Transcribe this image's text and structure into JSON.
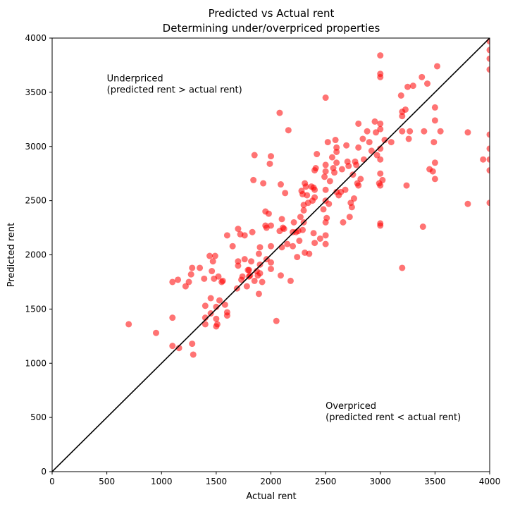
{
  "chart_data": {
    "type": "scatter",
    "title": "Predicted vs Actual rent",
    "subtitle": "Determining under/overpriced properties",
    "xlabel": "Actual rent",
    "ylabel": "Predicted rent",
    "xlim": [
      0,
      4000
    ],
    "ylim": [
      0,
      4000
    ],
    "xticks": [
      "0",
      "500",
      "1000",
      "1500",
      "2000",
      "2500",
      "3000",
      "3500",
      "4000"
    ],
    "yticks": [
      "0",
      "500",
      "1000",
      "1500",
      "2000",
      "2500",
      "3000",
      "3500",
      "4000"
    ],
    "grid": false,
    "annotations": [
      {
        "lines": [
          "Underpriced",
          "(predicted rent > actual rent)"
        ],
        "x": 500,
        "y": 3600
      },
      {
        "lines": [
          "Overpriced",
          "(predicted rent < actual rent)"
        ],
        "x": 2500,
        "y": 580
      }
    ],
    "reference_line": {
      "from": [
        0,
        0
      ],
      "to": [
        4000,
        4000
      ],
      "color": "#000000"
    },
    "point_color": "#ff0000",
    "point_opacity": 0.55,
    "points": [
      [
        700,
        1360
      ],
      [
        950,
        1280
      ],
      [
        1100,
        1750
      ],
      [
        1100,
        1420
      ],
      [
        1100,
        1160
      ],
      [
        1150,
        1770
      ],
      [
        1160,
        1140
      ],
      [
        1220,
        1710
      ],
      [
        1250,
        1750
      ],
      [
        1270,
        1820
      ],
      [
        1280,
        1880
      ],
      [
        1280,
        1180
      ],
      [
        1290,
        1080
      ],
      [
        1350,
        1880
      ],
      [
        1390,
        1780
      ],
      [
        1400,
        1530
      ],
      [
        1400,
        1420
      ],
      [
        1400,
        1360
      ],
      [
        1440,
        1990
      ],
      [
        1450,
        1600
      ],
      [
        1450,
        1460
      ],
      [
        1460,
        1850
      ],
      [
        1470,
        1940
      ],
      [
        1480,
        1780
      ],
      [
        1490,
        1990
      ],
      [
        1500,
        1520
      ],
      [
        1500,
        1410
      ],
      [
        1500,
        1340
      ],
      [
        1510,
        1360
      ],
      [
        1520,
        1800
      ],
      [
        1530,
        1580
      ],
      [
        1550,
        1750
      ],
      [
        1560,
        1760
      ],
      [
        1580,
        1540
      ],
      [
        1600,
        1470
      ],
      [
        1600,
        1440
      ],
      [
        1600,
        2180
      ],
      [
        1650,
        2080
      ],
      [
        1690,
        1690
      ],
      [
        1700,
        1900
      ],
      [
        1700,
        1940
      ],
      [
        1700,
        2240
      ],
      [
        1720,
        2190
      ],
      [
        1730,
        1770
      ],
      [
        1740,
        1800
      ],
      [
        1760,
        1960
      ],
      [
        1760,
        2180
      ],
      [
        1780,
        1710
      ],
      [
        1790,
        1860
      ],
      [
        1800,
        1860
      ],
      [
        1800,
        1800
      ],
      [
        1810,
        1810
      ],
      [
        1820,
        1940
      ],
      [
        1830,
        2210
      ],
      [
        1840,
        2690
      ],
      [
        1850,
        2920
      ],
      [
        1850,
        1760
      ],
      [
        1870,
        1850
      ],
      [
        1880,
        1810
      ],
      [
        1890,
        2010
      ],
      [
        1890,
        1640
      ],
      [
        1900,
        2070
      ],
      [
        1900,
        1830
      ],
      [
        1900,
        1910
      ],
      [
        1920,
        1750
      ],
      [
        1930,
        2660
      ],
      [
        1950,
        2400
      ],
      [
        1950,
        2270
      ],
      [
        1960,
        2250
      ],
      [
        1960,
        1960
      ],
      [
        1980,
        2380
      ],
      [
        1990,
        2840
      ],
      [
        2000,
        2910
      ],
      [
        2000,
        2270
      ],
      [
        2000,
        2080
      ],
      [
        2000,
        1930
      ],
      [
        2000,
        1870
      ],
      [
        2050,
        1390
      ],
      [
        2080,
        3310
      ],
      [
        2080,
        2220
      ],
      [
        2090,
        1810
      ],
      [
        2090,
        2650
      ],
      [
        2100,
        2070
      ],
      [
        2100,
        2330
      ],
      [
        2110,
        2250
      ],
      [
        2120,
        2240
      ],
      [
        2130,
        2570
      ],
      [
        2150,
        2100
      ],
      [
        2160,
        3150
      ],
      [
        2180,
        1760
      ],
      [
        2200,
        2210
      ],
      [
        2200,
        2080
      ],
      [
        2210,
        2300
      ],
      [
        2230,
        2210
      ],
      [
        2240,
        1980
      ],
      [
        2250,
        2220
      ],
      [
        2260,
        2130
      ],
      [
        2270,
        2350
      ],
      [
        2280,
        2590
      ],
      [
        2290,
        2560
      ],
      [
        2290,
        2230
      ],
      [
        2300,
        2460
      ],
      [
        2300,
        2410
      ],
      [
        2300,
        2300
      ],
      [
        2310,
        2660
      ],
      [
        2310,
        2020
      ],
      [
        2320,
        2630
      ],
      [
        2330,
        2550
      ],
      [
        2340,
        2480
      ],
      [
        2350,
        2010
      ],
      [
        2370,
        2630
      ],
      [
        2380,
        2500
      ],
      [
        2390,
        2620
      ],
      [
        2390,
        2200
      ],
      [
        2400,
        2780
      ],
      [
        2400,
        2600
      ],
      [
        2400,
        2530
      ],
      [
        2400,
        2110
      ],
      [
        2410,
        2800
      ],
      [
        2420,
        2930
      ],
      [
        2450,
        2150
      ],
      [
        2480,
        2420
      ],
      [
        2490,
        2720
      ],
      [
        2500,
        3450
      ],
      [
        2500,
        2830
      ],
      [
        2500,
        2770
      ],
      [
        2500,
        2600
      ],
      [
        2500,
        2500
      ],
      [
        2500,
        2300
      ],
      [
        2500,
        2180
      ],
      [
        2500,
        2100
      ],
      [
        2510,
        2340
      ],
      [
        2520,
        3040
      ],
      [
        2530,
        2470
      ],
      [
        2540,
        2680
      ],
      [
        2560,
        2900
      ],
      [
        2570,
        2800
      ],
      [
        2580,
        2760
      ],
      [
        2590,
        3060
      ],
      [
        2600,
        2990
      ],
      [
        2600,
        2950
      ],
      [
        2600,
        2850
      ],
      [
        2600,
        2580
      ],
      [
        2620,
        2550
      ],
      [
        2640,
        2580
      ],
      [
        2650,
        2790
      ],
      [
        2660,
        2300
      ],
      [
        2680,
        2600
      ],
      [
        2690,
        3010
      ],
      [
        2700,
        2860
      ],
      [
        2710,
        2820
      ],
      [
        2720,
        2350
      ],
      [
        2730,
        2480
      ],
      [
        2740,
        2440
      ],
      [
        2750,
        2740
      ],
      [
        2760,
        2520
      ],
      [
        2770,
        2860
      ],
      [
        2780,
        2830
      ],
      [
        2790,
        2660
      ],
      [
        2800,
        3210
      ],
      [
        2800,
        2990
      ],
      [
        2800,
        2640
      ],
      [
        2820,
        2700
      ],
      [
        2840,
        3070
      ],
      [
        2850,
        2880
      ],
      [
        2880,
        3140
      ],
      [
        2900,
        3040
      ],
      [
        2920,
        2960
      ],
      [
        2950,
        3230
      ],
      [
        2960,
        3130
      ],
      [
        2970,
        2920
      ],
      [
        2990,
        2660
      ],
      [
        3000,
        3840
      ],
      [
        3000,
        3670
      ],
      [
        3000,
        3640
      ],
      [
        3000,
        3210
      ],
      [
        3000,
        3160
      ],
      [
        3000,
        2980
      ],
      [
        3000,
        2880
      ],
      [
        3000,
        2750
      ],
      [
        3000,
        2640
      ],
      [
        3000,
        2290
      ],
      [
        3000,
        2270
      ],
      [
        3020,
        2690
      ],
      [
        3040,
        3060
      ],
      [
        3100,
        3040
      ],
      [
        3190,
        3470
      ],
      [
        3200,
        3320
      ],
      [
        3200,
        3280
      ],
      [
        3200,
        3140
      ],
      [
        3200,
        1880
      ],
      [
        3230,
        3340
      ],
      [
        3240,
        2640
      ],
      [
        3250,
        3550
      ],
      [
        3260,
        3070
      ],
      [
        3270,
        3140
      ],
      [
        3300,
        3560
      ],
      [
        3380,
        3640
      ],
      [
        3390,
        2260
      ],
      [
        3400,
        3140
      ],
      [
        3430,
        3580
      ],
      [
        3450,
        2790
      ],
      [
        3480,
        2770
      ],
      [
        3490,
        3040
      ],
      [
        3500,
        3360
      ],
      [
        3500,
        3240
      ],
      [
        3500,
        2850
      ],
      [
        3500,
        2700
      ],
      [
        3520,
        3740
      ],
      [
        3550,
        3140
      ],
      [
        3800,
        3130
      ],
      [
        3800,
        2470
      ],
      [
        3940,
        2880
      ],
      [
        4000,
        3970
      ],
      [
        4000,
        3890
      ],
      [
        4000,
        3810
      ],
      [
        4000,
        3710
      ],
      [
        4000,
        3110
      ],
      [
        4000,
        2980
      ],
      [
        4000,
        2880
      ],
      [
        4000,
        2780
      ],
      [
        4000,
        2480
      ]
    ]
  }
}
